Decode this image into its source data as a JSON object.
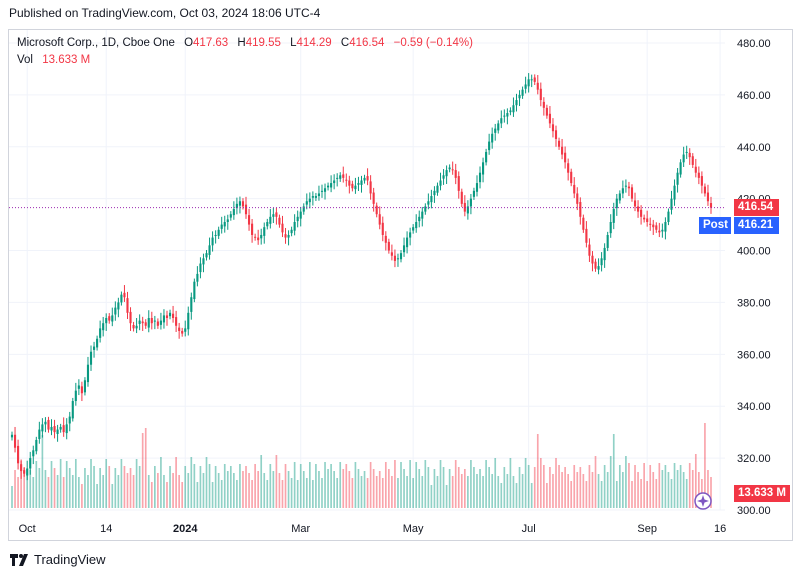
{
  "header": {
    "published": "Published on TradingView.com, Oct 03, 2024 18:06 UTC-4"
  },
  "legend": {
    "symbol": "Microsoft Corp., 1D, Cboe One",
    "open_label": "O",
    "open": "417.63",
    "high_label": "H",
    "high": "419.55",
    "low_label": "L",
    "low": "414.29",
    "close_label": "C",
    "close": "416.54",
    "change": "−0.59 (−0.14%)",
    "vol_label": "Vol",
    "vol": "13.633 M"
  },
  "tags": {
    "last_price": "416.54",
    "post_label": "Post",
    "post_price": "416.21",
    "volume": "13.633 M"
  },
  "colors": {
    "up": "#089981",
    "down": "#f23645",
    "post": "#2962ff",
    "grid": "#f0f3fa",
    "text": "#131722"
  },
  "chart_data": {
    "type": "candlestick",
    "title": "Microsoft Corp., 1D, Cboe One",
    "ylim": [
      300,
      485
    ],
    "y_ticks": [
      "480.00",
      "460.00",
      "440.00",
      "420.00",
      "400.00",
      "380.00",
      "360.00",
      "340.00",
      "320.00",
      "300.00"
    ],
    "x_ticks": [
      "Oct",
      "14",
      "2024",
      "Mar",
      "May",
      "Jul",
      "Sep",
      "16"
    ],
    "x_tick_index": [
      5,
      31,
      57,
      95,
      132,
      170,
      209,
      233
    ],
    "last_close": 416.54,
    "post_price": 416.21,
    "close_series": [
      329,
      324,
      318,
      315,
      314,
      316,
      320,
      323,
      327,
      331,
      333,
      334,
      331,
      332,
      330,
      331,
      332,
      330,
      333,
      336,
      342,
      346,
      348,
      345,
      350,
      356,
      361,
      363,
      366,
      370,
      372,
      374,
      373,
      375,
      378,
      380,
      383,
      382,
      376,
      372,
      370,
      371,
      373,
      372,
      371,
      374,
      372,
      373,
      371,
      373,
      375,
      374,
      376,
      374,
      371,
      369,
      368,
      370,
      376,
      382,
      388,
      391,
      395,
      397,
      399,
      402,
      405,
      406,
      408,
      410,
      411,
      412,
      414,
      416,
      418,
      419,
      417,
      414,
      410,
      406,
      405,
      404,
      406,
      409,
      411,
      413,
      414,
      413,
      410,
      407,
      405,
      406,
      408,
      411,
      413,
      415,
      417,
      419,
      420,
      421,
      421,
      422,
      423,
      424,
      425,
      426,
      427,
      428,
      429,
      428,
      427,
      425,
      424,
      425,
      426,
      427,
      428,
      427,
      422,
      418,
      414,
      410,
      406,
      403,
      400,
      398,
      396,
      397,
      399,
      402,
      405,
      407,
      409,
      411,
      413,
      415,
      417,
      419,
      421,
      423,
      425,
      427,
      429,
      431,
      432,
      431,
      428,
      423,
      418,
      415,
      417,
      420,
      423,
      426,
      430,
      434,
      438,
      442,
      445,
      447,
      449,
      451,
      452,
      453,
      454,
      456,
      458,
      460,
      462,
      464,
      466,
      466,
      465,
      462,
      458,
      455,
      452,
      449,
      446,
      443,
      440,
      437,
      434,
      430,
      426,
      422,
      418,
      413,
      408,
      403,
      398,
      395,
      393,
      394,
      397,
      401,
      406,
      411,
      416,
      420,
      422,
      424,
      425,
      424,
      420,
      417,
      415,
      413,
      412,
      411,
      410,
      409,
      408,
      407,
      408,
      411,
      415,
      420,
      425,
      430,
      434,
      437,
      438,
      436,
      433,
      430,
      428,
      425,
      422,
      419,
      416.54
    ]
  }
}
